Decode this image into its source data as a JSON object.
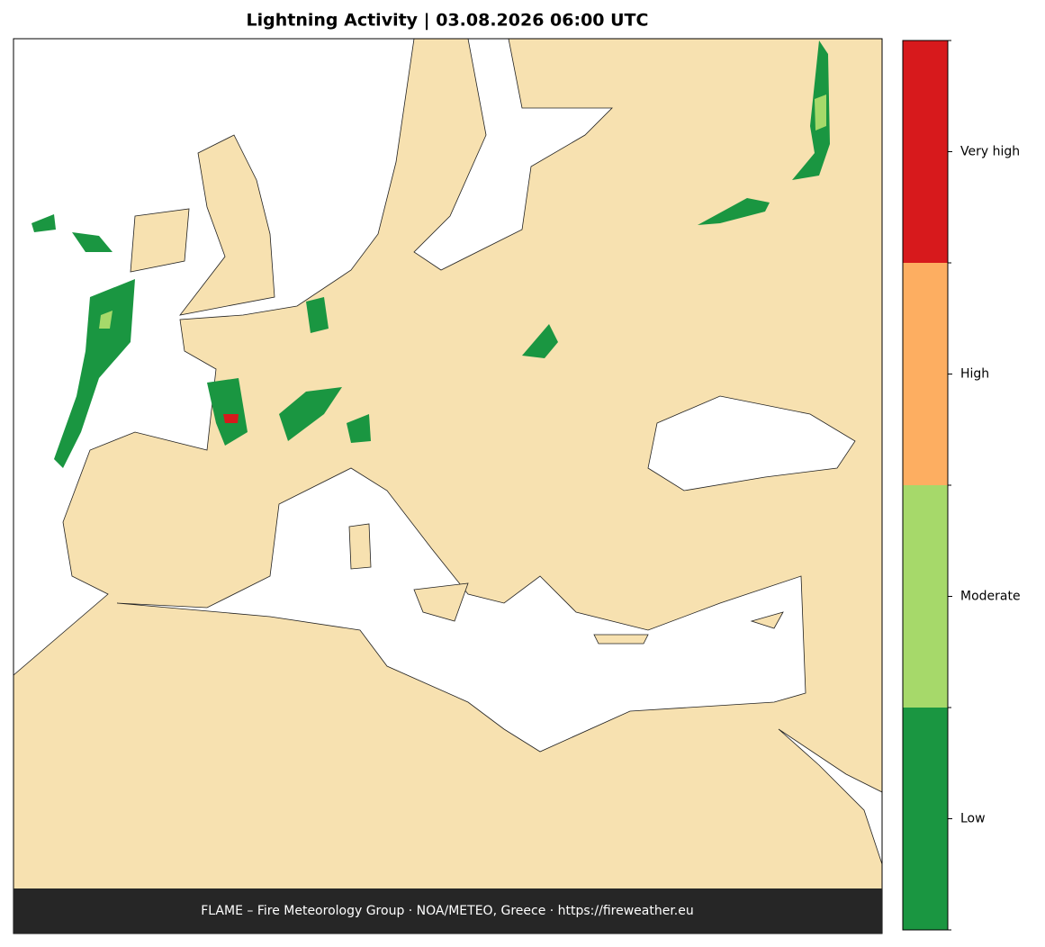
{
  "header": {
    "title": "Lightning Activity  |  03.08.2026 06:00 UTC"
  },
  "footer": {
    "text": "FLAME – Fire Meteorology Group · NOA/METEO, Greece · https://fireweather.eu"
  },
  "legend": {
    "levels": [
      {
        "label": "Low",
        "color": "#1a9641"
      },
      {
        "label": "Moderate",
        "color": "#a6d96a"
      },
      {
        "label": "High",
        "color": "#fdae61"
      },
      {
        "label": "Very high",
        "color": "#d7191c"
      }
    ]
  }
}
